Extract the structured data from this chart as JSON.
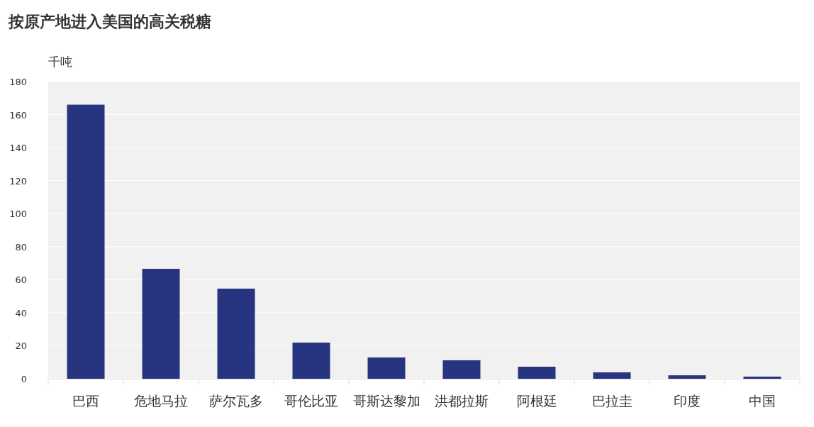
{
  "chart_data": {
    "type": "bar",
    "title": "按原产地进入美国的高关税糖",
    "ylabel": "千吨",
    "categories": [
      "巴西",
      "危地马拉",
      "萨尔瓦多",
      "哥伦比亚",
      "哥斯达黎加",
      "洪都拉斯",
      "阿根廷",
      "巴拉圭",
      "印度",
      "中国"
    ],
    "values": [
      166,
      66.6,
      54.6,
      21.9,
      12.9,
      11.2,
      7.3,
      3.9,
      2.1,
      1.3
    ],
    "color": "#27347f",
    "ylim": [
      0,
      180
    ],
    "yticks": [
      0,
      20,
      40,
      60,
      80,
      100,
      120,
      140,
      160,
      180
    ],
    "grid": "y"
  }
}
